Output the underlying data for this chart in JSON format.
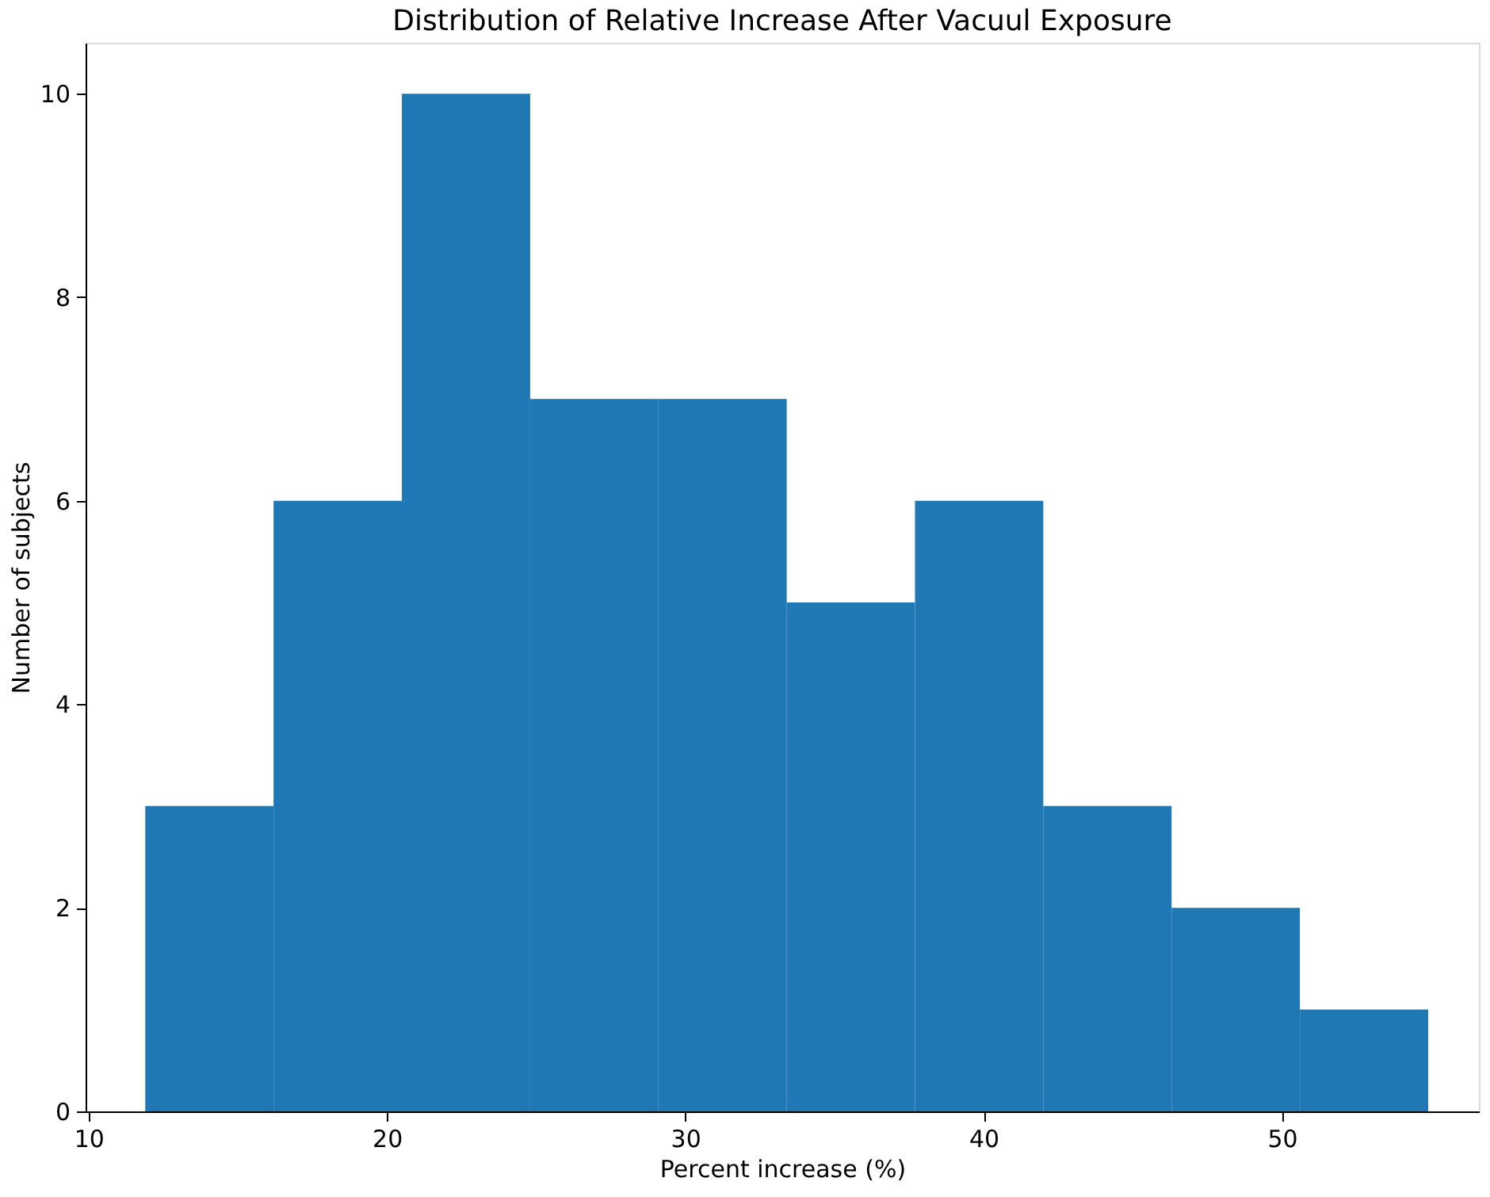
{
  "chart_data": {
    "type": "histogram",
    "title": "Distribution of Relative Increase After Vacuul Exposure",
    "xlabel": "Percent increase (%)",
    "ylabel": "Number of subjects",
    "bins": [
      11.9,
      16.2,
      20.5,
      24.8,
      29.1,
      33.4,
      37.7,
      42.0,
      46.3,
      50.6,
      54.9
    ],
    "values": [
      3,
      6,
      10,
      7,
      7,
      5,
      6,
      3,
      2,
      1
    ],
    "color": "#1f77b4",
    "xlim": [
      9.9,
      56.6
    ],
    "xticks": [
      10,
      20,
      30,
      40,
      50
    ],
    "ylim": [
      0,
      10.5
    ],
    "yticks": [
      0,
      2,
      4,
      6,
      8,
      10
    ],
    "grid": false
  }
}
